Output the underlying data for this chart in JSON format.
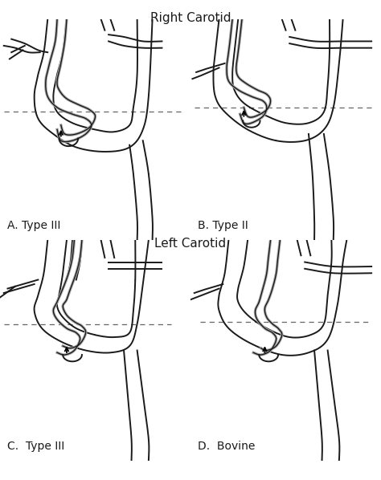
{
  "title_top": "Right Carotid",
  "title_bottom": "Left Carotid",
  "labels": [
    "A. Type III",
    "B. Type II",
    "C.  Type III",
    "D.  Bovine"
  ],
  "bg_color": "#ffffff",
  "line_color": "#1a1a1a",
  "catheter_color": "#aaaaaa",
  "dashed_color": "#666666",
  "title_fontsize": 11,
  "label_fontsize": 10,
  "line_width": 1.4,
  "catheter_lw": 2.5
}
